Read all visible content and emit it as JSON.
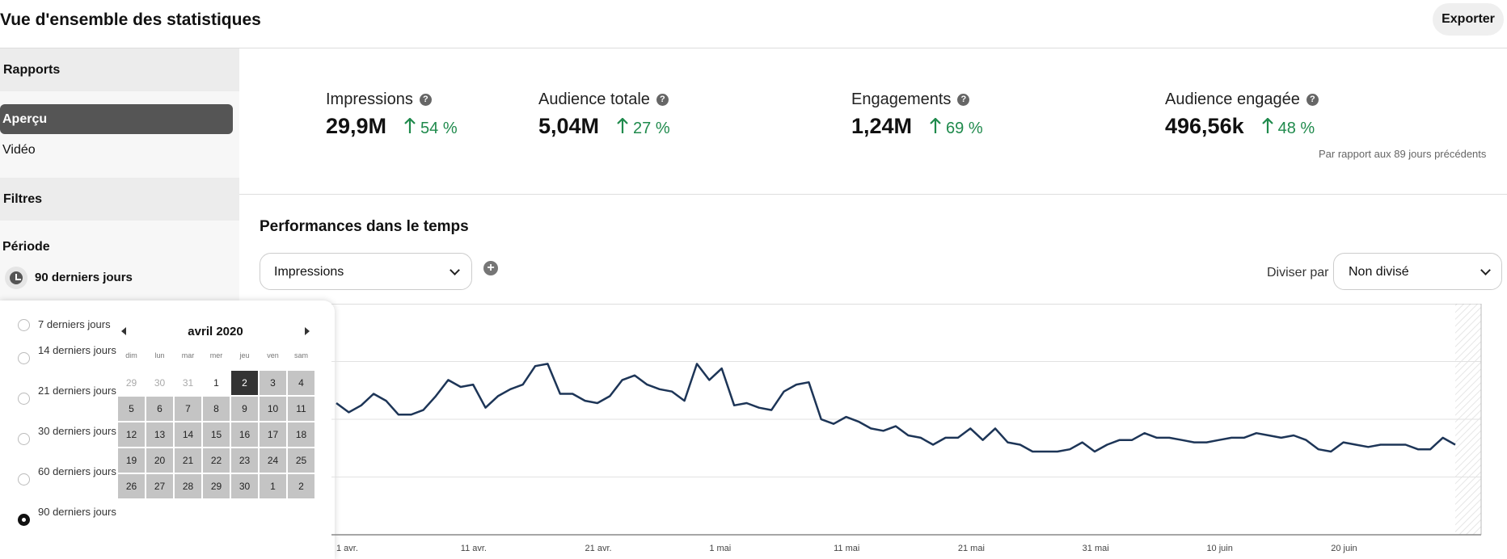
{
  "header": {
    "title": "Vue d'ensemble des statistiques",
    "export_label": "Exporter"
  },
  "sidebar": {
    "reports_heading": "Rapports",
    "nav": [
      {
        "label": "Aperçu",
        "active": true
      },
      {
        "label": "Vidéo",
        "active": false
      }
    ],
    "filters_heading": "Filtres",
    "period_label": "Période",
    "period_value": "90 derniers jours",
    "period_icon": "clock-icon"
  },
  "date_popover": {
    "options": [
      {
        "label": "7 derniers jours",
        "selected": false
      },
      {
        "label": "14 derniers jours",
        "selected": false
      },
      {
        "label": "21 derniers jours",
        "selected": false
      },
      {
        "label": "30 derniers jours",
        "selected": false
      },
      {
        "label": "60 derniers jours",
        "selected": false
      },
      {
        "label": "90 derniers jours",
        "selected": true
      }
    ],
    "calendar": {
      "month": "avril 2020",
      "weekdays": [
        "dim",
        "lun",
        "mar",
        "mer",
        "jeu",
        "ven",
        "sam"
      ],
      "days": [
        {
          "d": "29",
          "state": "out-pre"
        },
        {
          "d": "30",
          "state": "out-pre"
        },
        {
          "d": "31",
          "state": "out-pre"
        },
        {
          "d": "1",
          "state": "pre"
        },
        {
          "d": "2",
          "state": "sel"
        },
        {
          "d": "3",
          "state": "range"
        },
        {
          "d": "4",
          "state": "range"
        },
        {
          "d": "5",
          "state": "range"
        },
        {
          "d": "6",
          "state": "range"
        },
        {
          "d": "7",
          "state": "range"
        },
        {
          "d": "8",
          "state": "range"
        },
        {
          "d": "9",
          "state": "range"
        },
        {
          "d": "10",
          "state": "range"
        },
        {
          "d": "11",
          "state": "range"
        },
        {
          "d": "12",
          "state": "range"
        },
        {
          "d": "13",
          "state": "range"
        },
        {
          "d": "14",
          "state": "range"
        },
        {
          "d": "15",
          "state": "range"
        },
        {
          "d": "16",
          "state": "range"
        },
        {
          "d": "17",
          "state": "range"
        },
        {
          "d": "18",
          "state": "range"
        },
        {
          "d": "19",
          "state": "range"
        },
        {
          "d": "20",
          "state": "range"
        },
        {
          "d": "21",
          "state": "range"
        },
        {
          "d": "22",
          "state": "range"
        },
        {
          "d": "23",
          "state": "range"
        },
        {
          "d": "24",
          "state": "range"
        },
        {
          "d": "25",
          "state": "range"
        },
        {
          "d": "26",
          "state": "range"
        },
        {
          "d": "27",
          "state": "range"
        },
        {
          "d": "28",
          "state": "range"
        },
        {
          "d": "29",
          "state": "range"
        },
        {
          "d": "30",
          "state": "range"
        },
        {
          "d": "1",
          "state": "range"
        },
        {
          "d": "2",
          "state": "range"
        }
      ]
    }
  },
  "stats": [
    {
      "label": "Impressions",
      "value": "29,9M",
      "change": "54 %"
    },
    {
      "label": "Audience totale",
      "value": "5,04M",
      "change": "27 %"
    },
    {
      "label": "Engagements",
      "value": "1,24M",
      "change": "69 %"
    },
    {
      "label": "Audience engagée",
      "value": "496,56k",
      "change": "48 %"
    }
  ],
  "stats_note": "Par rapport aux 89 jours précédents",
  "performance": {
    "title": "Performances dans le temps",
    "metric_value": "Impressions",
    "split_label": "Diviser par",
    "split_value": "Non divisé"
  },
  "colors": {
    "positive": "#1f8a4c",
    "line": "#1d3557",
    "selected_day": "#333333",
    "range_day": "#c4c4c4"
  },
  "chart_data": {
    "type": "line",
    "x_tick_labels": [
      "1 avr.",
      "11 avr.",
      "21 avr.",
      "1 mai",
      "11 mai",
      "21 mai",
      "31 mai",
      "10 juin",
      "20 juin"
    ],
    "x_tick_days": [
      0,
      10,
      20,
      30,
      40,
      50,
      60,
      70,
      80
    ],
    "grid": "horizontal",
    "series": [
      {
        "values": [
          0.57,
          0.53,
          0.56,
          0.61,
          0.58,
          0.52,
          0.52,
          0.54,
          0.6,
          0.67,
          0.64,
          0.65,
          0.55,
          0.6,
          0.63,
          0.65,
          0.73,
          0.74,
          0.61,
          0.61,
          0.58,
          0.57,
          0.6,
          0.67,
          0.69,
          0.65,
          0.63,
          0.62,
          0.58,
          0.74,
          0.67,
          0.72,
          0.56,
          0.57,
          0.55,
          0.54,
          0.62,
          0.65,
          0.66,
          0.5,
          0.48,
          0.51,
          0.49,
          0.46,
          0.45,
          0.47,
          0.43,
          0.42,
          0.39,
          0.42,
          0.42,
          0.46,
          0.41,
          0.46,
          0.4,
          0.39,
          0.36,
          0.36,
          0.36,
          0.37,
          0.4,
          0.36,
          0.39,
          0.41,
          0.41,
          0.44,
          0.42,
          0.42,
          0.41,
          0.4,
          0.4,
          0.41,
          0.42,
          0.42,
          0.44,
          0.43,
          0.42,
          0.43,
          0.41,
          0.37,
          0.36,
          0.4,
          0.39,
          0.38,
          0.39,
          0.39,
          0.39,
          0.37,
          0.37,
          0.42,
          0.39
        ]
      }
    ]
  }
}
